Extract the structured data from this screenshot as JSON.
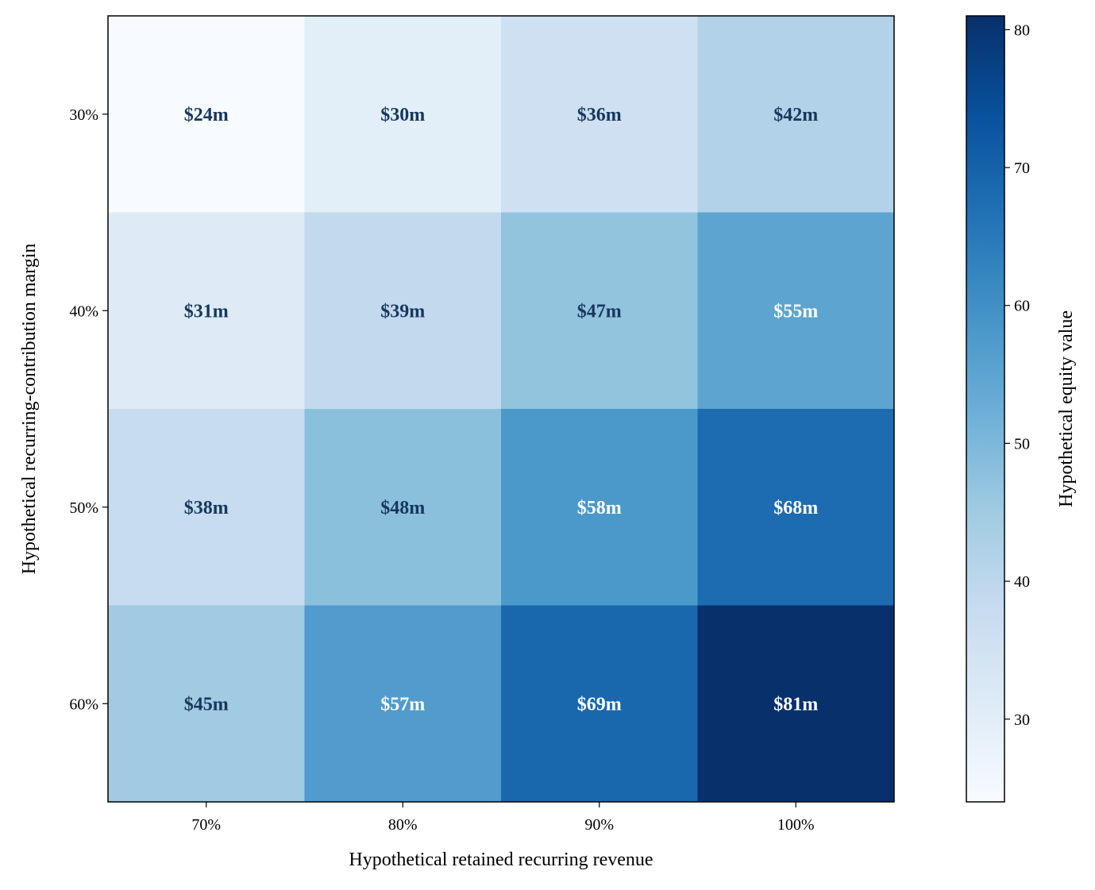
{
  "chart_data": {
    "type": "heatmap",
    "title": "",
    "xlabel": "Hypothetical retained recurring revenue",
    "ylabel": "Hypothetical recurring-contribution margin",
    "x_categories": [
      "70%",
      "80%",
      "90%",
      "100%"
    ],
    "y_categories": [
      "30%",
      "40%",
      "50%",
      "60%"
    ],
    "values": [
      [
        24,
        30,
        36,
        42
      ],
      [
        31,
        39,
        47,
        55
      ],
      [
        38,
        48,
        58,
        68
      ],
      [
        45,
        57,
        69,
        81
      ]
    ],
    "cell_labels": [
      [
        "$24m",
        "$30m",
        "$36m",
        "$42m"
      ],
      [
        "$31m",
        "$39m",
        "$47m",
        "$55m"
      ],
      [
        "$38m",
        "$48m",
        "$58m",
        "$68m"
      ],
      [
        "$45m",
        "$57m",
        "$69m",
        "$81m"
      ]
    ],
    "colorbar": {
      "label": "Hypothetical equity value",
      "range": [
        24,
        81
      ],
      "ticks": [
        30,
        40,
        50,
        60,
        70,
        80
      ],
      "tick_labels": [
        "30",
        "40",
        "50",
        "60",
        "70",
        "80"
      ],
      "colormap": "Blues"
    },
    "text_colors": {
      "dark": "#17375e",
      "light": "#ffffff"
    },
    "grid": false,
    "legend": "colorbar-right"
  }
}
